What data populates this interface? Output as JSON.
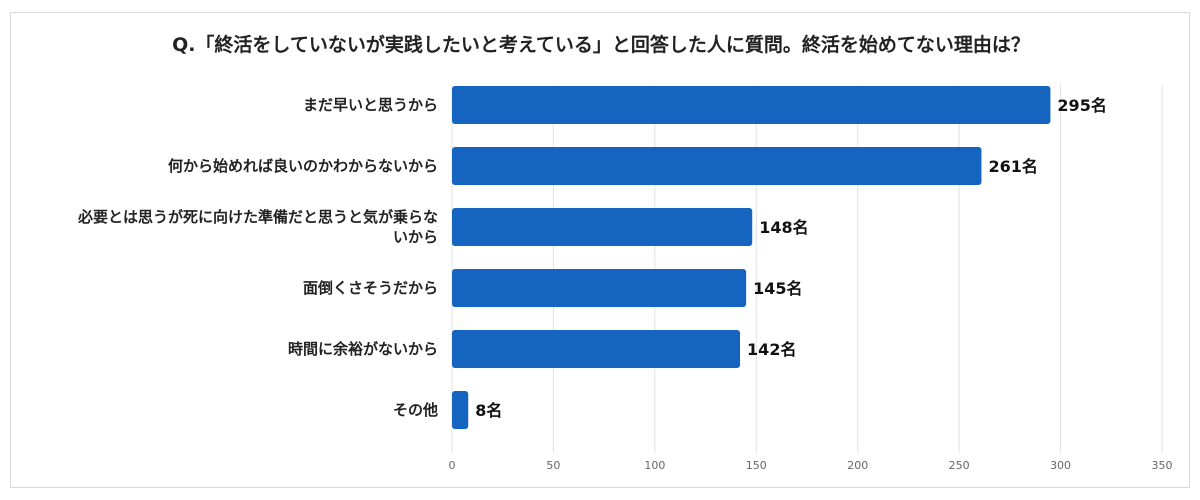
{
  "chart_data": {
    "type": "bar",
    "orientation": "horizontal",
    "title": "Q.「終活をしていないが実践したいと考えている」と回答した人に質問。終活を始めてない理由は？",
    "categories": [
      [
        "まだ早いと思うから"
      ],
      [
        "何から始めれば良いのかわからないから"
      ],
      [
        "必要とは思うが死に向けた準備だと思うと気が乗らな",
        "いから"
      ],
      [
        "面倒くさそうだから"
      ],
      [
        "時間に余裕がないから"
      ],
      [
        "その他"
      ]
    ],
    "values": [
      295,
      261,
      148,
      145,
      142,
      8
    ],
    "value_labels": [
      "295名",
      "261名",
      "148名",
      "145名",
      "142名",
      "8名"
    ],
    "x_ticks": [
      "0",
      "50",
      "100",
      "150",
      "200",
      "250",
      "300",
      "350"
    ],
    "xlim": [
      0,
      350
    ],
    "grid": true,
    "legend": "none",
    "bar_color": "#1565C0"
  }
}
